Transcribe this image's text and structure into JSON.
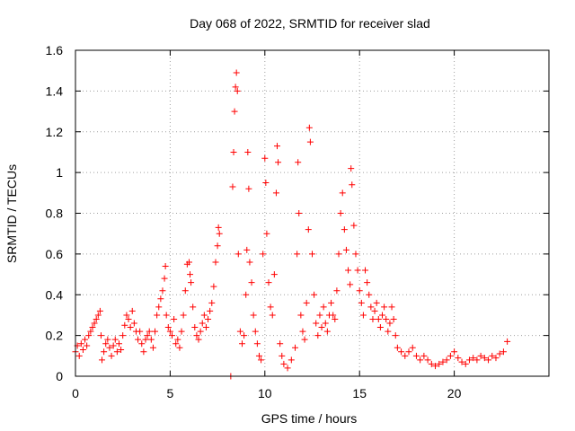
{
  "chart_data": {
    "type": "scatter",
    "title": "Day 068 of 2022, SRMTID for receiver slad",
    "xlabel": "GPS time / hours",
    "ylabel": "SRMTID / TECUs",
    "xlim": [
      0,
      25
    ],
    "ylim": [
      0,
      1.6
    ],
    "x_ticks": [
      0,
      5,
      10,
      15,
      20
    ],
    "x_tick_labels": [
      "0",
      "5",
      "10",
      "15",
      "20"
    ],
    "y_ticks": [
      0,
      0.2,
      0.4,
      0.6,
      0.8,
      1.0,
      1.2,
      1.4,
      1.6
    ],
    "y_tick_labels": [
      "0",
      "0.2",
      "0.4",
      "0.6",
      "0.8",
      "1",
      "1.2",
      "1.4",
      "1.6"
    ],
    "grid": true,
    "marker": "+",
    "color": "#ff0000",
    "series": [
      {
        "name": "SRMTID",
        "points": [
          [
            0.0,
            0.12
          ],
          [
            0.1,
            0.15
          ],
          [
            0.2,
            0.1
          ],
          [
            0.3,
            0.16
          ],
          [
            0.4,
            0.13
          ],
          [
            0.5,
            0.18
          ],
          [
            0.6,
            0.15
          ],
          [
            0.7,
            0.2
          ],
          [
            0.8,
            0.22
          ],
          [
            0.9,
            0.24
          ],
          [
            1.0,
            0.26
          ],
          [
            1.1,
            0.28
          ],
          [
            1.2,
            0.3
          ],
          [
            1.3,
            0.32
          ],
          [
            1.35,
            0.2
          ],
          [
            1.4,
            0.08
          ],
          [
            1.5,
            0.12
          ],
          [
            1.6,
            0.16
          ],
          [
            1.7,
            0.18
          ],
          [
            1.8,
            0.14
          ],
          [
            1.9,
            0.1
          ],
          [
            2.0,
            0.15
          ],
          [
            2.1,
            0.18
          ],
          [
            2.2,
            0.12
          ],
          [
            2.3,
            0.16
          ],
          [
            2.4,
            0.13
          ],
          [
            2.5,
            0.2
          ],
          [
            2.6,
            0.25
          ],
          [
            2.7,
            0.3
          ],
          [
            2.8,
            0.28
          ],
          [
            2.9,
            0.24
          ],
          [
            3.0,
            0.32
          ],
          [
            3.1,
            0.26
          ],
          [
            3.2,
            0.22
          ],
          [
            3.3,
            0.18
          ],
          [
            3.4,
            0.22
          ],
          [
            3.5,
            0.16
          ],
          [
            3.6,
            0.12
          ],
          [
            3.7,
            0.18
          ],
          [
            3.8,
            0.2
          ],
          [
            3.9,
            0.22
          ],
          [
            4.0,
            0.18
          ],
          [
            4.1,
            0.14
          ],
          [
            4.2,
            0.22
          ],
          [
            4.3,
            0.3
          ],
          [
            4.4,
            0.34
          ],
          [
            4.5,
            0.38
          ],
          [
            4.6,
            0.42
          ],
          [
            4.7,
            0.48
          ],
          [
            4.75,
            0.54
          ],
          [
            4.8,
            0.3
          ],
          [
            4.9,
            0.24
          ],
          [
            5.0,
            0.22
          ],
          [
            5.1,
            0.2
          ],
          [
            5.2,
            0.28
          ],
          [
            5.3,
            0.16
          ],
          [
            5.4,
            0.18
          ],
          [
            5.5,
            0.14
          ],
          [
            5.6,
            0.22
          ],
          [
            5.7,
            0.3
          ],
          [
            5.8,
            0.42
          ],
          [
            5.9,
            0.55
          ],
          [
            6.0,
            0.56
          ],
          [
            6.05,
            0.5
          ],
          [
            6.1,
            0.46
          ],
          [
            6.2,
            0.34
          ],
          [
            6.3,
            0.24
          ],
          [
            6.4,
            0.2
          ],
          [
            6.5,
            0.18
          ],
          [
            6.6,
            0.22
          ],
          [
            6.7,
            0.26
          ],
          [
            6.8,
            0.3
          ],
          [
            6.9,
            0.24
          ],
          [
            7.0,
            0.28
          ],
          [
            7.1,
            0.32
          ],
          [
            7.2,
            0.36
          ],
          [
            7.3,
            0.44
          ],
          [
            7.4,
            0.56
          ],
          [
            7.5,
            0.64
          ],
          [
            7.55,
            0.73
          ],
          [
            7.6,
            0.7
          ],
          [
            8.2,
            0.0
          ],
          [
            8.3,
            0.93
          ],
          [
            8.35,
            1.1
          ],
          [
            8.4,
            1.3
          ],
          [
            8.45,
            1.42
          ],
          [
            8.5,
            1.49
          ],
          [
            8.55,
            1.4
          ],
          [
            8.6,
            0.6
          ],
          [
            8.7,
            0.22
          ],
          [
            8.8,
            0.16
          ],
          [
            8.9,
            0.2
          ],
          [
            9.0,
            0.4
          ],
          [
            9.05,
            0.62
          ],
          [
            9.1,
            1.1
          ],
          [
            9.15,
            0.92
          ],
          [
            9.2,
            0.56
          ],
          [
            9.3,
            0.46
          ],
          [
            9.4,
            0.3
          ],
          [
            9.5,
            0.22
          ],
          [
            9.6,
            0.16
          ],
          [
            9.7,
            0.1
          ],
          [
            9.8,
            0.08
          ],
          [
            9.9,
            0.6
          ],
          [
            10.0,
            1.07
          ],
          [
            10.05,
            0.95
          ],
          [
            10.1,
            0.7
          ],
          [
            10.2,
            0.46
          ],
          [
            10.3,
            0.34
          ],
          [
            10.4,
            0.3
          ],
          [
            10.5,
            0.5
          ],
          [
            10.6,
            0.9
          ],
          [
            10.65,
            1.13
          ],
          [
            10.7,
            1.05
          ],
          [
            10.8,
            0.16
          ],
          [
            10.9,
            0.1
          ],
          [
            11.0,
            0.06
          ],
          [
            11.2,
            0.04
          ],
          [
            11.4,
            0.08
          ],
          [
            11.6,
            0.14
          ],
          [
            11.7,
            0.6
          ],
          [
            11.75,
            1.05
          ],
          [
            11.8,
            0.8
          ],
          [
            11.9,
            0.3
          ],
          [
            12.0,
            0.22
          ],
          [
            12.1,
            0.18
          ],
          [
            12.2,
            0.36
          ],
          [
            12.3,
            0.72
          ],
          [
            12.35,
            1.22
          ],
          [
            12.4,
            1.15
          ],
          [
            12.5,
            0.6
          ],
          [
            12.6,
            0.4
          ],
          [
            12.7,
            0.26
          ],
          [
            12.8,
            0.2
          ],
          [
            12.9,
            0.3
          ],
          [
            13.0,
            0.24
          ],
          [
            13.1,
            0.34
          ],
          [
            13.2,
            0.26
          ],
          [
            13.3,
            0.22
          ],
          [
            13.4,
            0.3
          ],
          [
            13.5,
            0.36
          ],
          [
            13.6,
            0.3
          ],
          [
            13.7,
            0.28
          ],
          [
            13.8,
            0.42
          ],
          [
            13.9,
            0.6
          ],
          [
            14.0,
            0.8
          ],
          [
            14.1,
            0.9
          ],
          [
            14.2,
            0.72
          ],
          [
            14.3,
            0.62
          ],
          [
            14.4,
            0.52
          ],
          [
            14.5,
            0.45
          ],
          [
            14.55,
            1.02
          ],
          [
            14.6,
            0.94
          ],
          [
            14.7,
            0.74
          ],
          [
            14.8,
            0.6
          ],
          [
            14.9,
            0.52
          ],
          [
            15.0,
            0.42
          ],
          [
            15.1,
            0.36
          ],
          [
            15.2,
            0.3
          ],
          [
            15.3,
            0.52
          ],
          [
            15.4,
            0.46
          ],
          [
            15.5,
            0.4
          ],
          [
            15.6,
            0.34
          ],
          [
            15.7,
            0.28
          ],
          [
            15.8,
            0.32
          ],
          [
            15.9,
            0.36
          ],
          [
            16.0,
            0.28
          ],
          [
            16.1,
            0.24
          ],
          [
            16.2,
            0.3
          ],
          [
            16.3,
            0.34
          ],
          [
            16.4,
            0.28
          ],
          [
            16.5,
            0.22
          ],
          [
            16.6,
            0.26
          ],
          [
            16.7,
            0.34
          ],
          [
            16.8,
            0.28
          ],
          [
            16.9,
            0.2
          ],
          [
            17.0,
            0.14
          ],
          [
            17.2,
            0.12
          ],
          [
            17.4,
            0.1
          ],
          [
            17.6,
            0.12
          ],
          [
            17.8,
            0.14
          ],
          [
            18.0,
            0.1
          ],
          [
            18.2,
            0.08
          ],
          [
            18.4,
            0.1
          ],
          [
            18.6,
            0.08
          ],
          [
            18.8,
            0.06
          ],
          [
            19.0,
            0.05
          ],
          [
            19.2,
            0.06
          ],
          [
            19.4,
            0.07
          ],
          [
            19.6,
            0.08
          ],
          [
            19.8,
            0.1
          ],
          [
            20.0,
            0.12
          ],
          [
            20.2,
            0.09
          ],
          [
            20.4,
            0.07
          ],
          [
            20.6,
            0.06
          ],
          [
            20.8,
            0.08
          ],
          [
            21.0,
            0.09
          ],
          [
            21.2,
            0.08
          ],
          [
            21.4,
            0.1
          ],
          [
            21.6,
            0.09
          ],
          [
            21.8,
            0.08
          ],
          [
            22.0,
            0.1
          ],
          [
            22.2,
            0.09
          ],
          [
            22.4,
            0.11
          ],
          [
            22.6,
            0.12
          ],
          [
            22.8,
            0.17
          ]
        ]
      }
    ]
  }
}
